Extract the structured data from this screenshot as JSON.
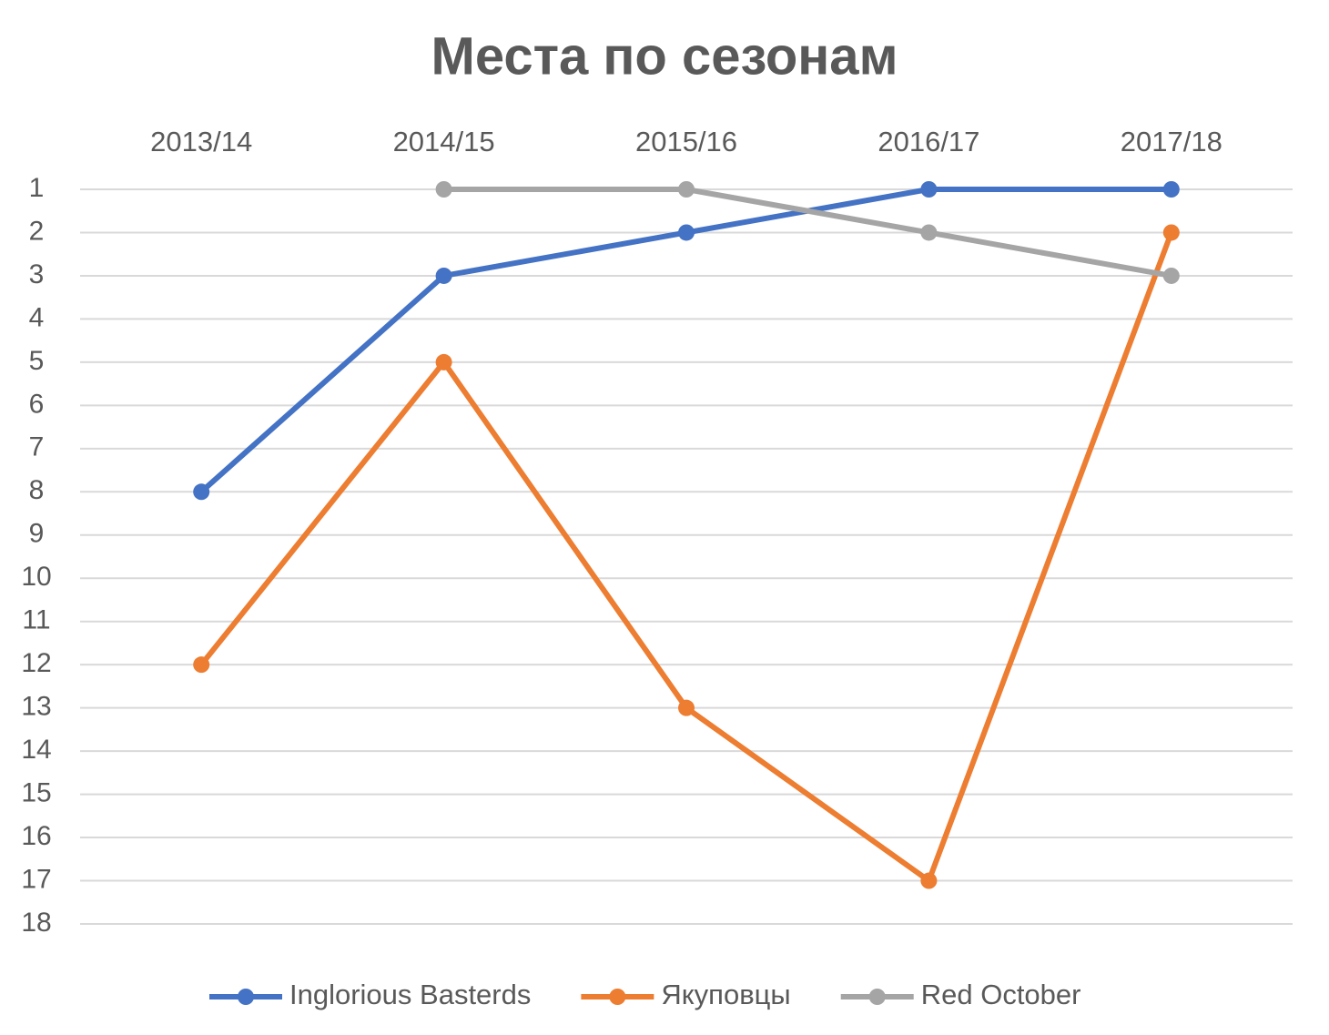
{
  "chart_data": {
    "type": "line",
    "title": "Места по сезонам",
    "categories": [
      "2013/14",
      "2014/15",
      "2015/16",
      "2016/17",
      "2017/18"
    ],
    "series": [
      {
        "name": "Inglorious Basterds",
        "color": "#4472c4",
        "values": [
          8,
          3,
          2,
          1,
          1
        ]
      },
      {
        "name": "Якуповцы",
        "color": "#ed7d31",
        "values": [
          12,
          5,
          13,
          17,
          2
        ]
      },
      {
        "name": "Red October",
        "color": "#a5a5a5",
        "values": [
          null,
          1,
          1,
          2,
          3
        ]
      }
    ],
    "ylim": [
      1,
      18
    ],
    "y_reversed": true,
    "yticks": [
      1,
      2,
      3,
      4,
      5,
      6,
      7,
      8,
      9,
      10,
      11,
      12,
      13,
      14,
      15,
      16,
      17,
      18
    ],
    "grid": true,
    "legend": "bottom",
    "x_axis_position": "top"
  }
}
